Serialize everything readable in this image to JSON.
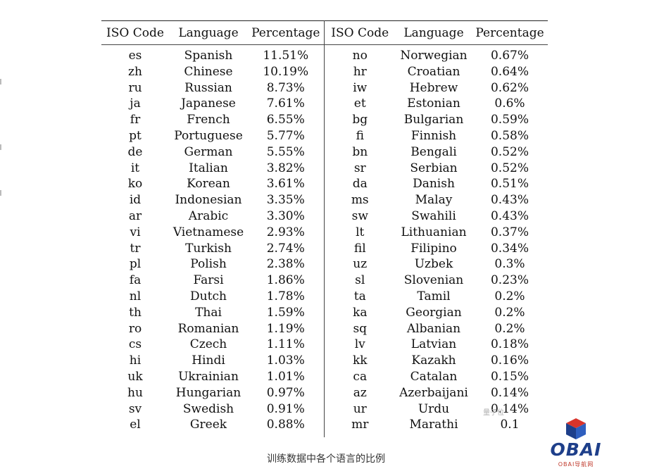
{
  "table": {
    "headers": [
      "ISO Code",
      "Language",
      "Percentage",
      "ISO Code",
      "Language",
      "Percentage"
    ],
    "rows": [
      [
        "es",
        "Spanish",
        "11.51%",
        "no",
        "Norwegian",
        "0.67%"
      ],
      [
        "zh",
        "Chinese",
        "10.19%",
        "hr",
        "Croatian",
        "0.64%"
      ],
      [
        "ru",
        "Russian",
        "8.73%",
        "iw",
        "Hebrew",
        "0.62%"
      ],
      [
        "ja",
        "Japanese",
        "7.61%",
        "et",
        "Estonian",
        "0.6%"
      ],
      [
        "fr",
        "French",
        "6.55%",
        "bg",
        "Bulgarian",
        "0.59%"
      ],
      [
        "pt",
        "Portuguese",
        "5.77%",
        "fi",
        "Finnish",
        "0.58%"
      ],
      [
        "de",
        "German",
        "5.55%",
        "bn",
        "Bengali",
        "0.52%"
      ],
      [
        "it",
        "Italian",
        "3.82%",
        "sr",
        "Serbian",
        "0.52%"
      ],
      [
        "ko",
        "Korean",
        "3.61%",
        "da",
        "Danish",
        "0.51%"
      ],
      [
        "id",
        "Indonesian",
        "3.35%",
        "ms",
        "Malay",
        "0.43%"
      ],
      [
        "ar",
        "Arabic",
        "3.30%",
        "sw",
        "Swahili",
        "0.43%"
      ],
      [
        "vi",
        "Vietnamese",
        "2.93%",
        "lt",
        "Lithuanian",
        "0.37%"
      ],
      [
        "tr",
        "Turkish",
        "2.74%",
        "fil",
        "Filipino",
        "0.34%"
      ],
      [
        "pl",
        "Polish",
        "2.38%",
        "uz",
        "Uzbek",
        "0.3%"
      ],
      [
        "fa",
        "Farsi",
        "1.86%",
        "sl",
        "Slovenian",
        "0.23%"
      ],
      [
        "nl",
        "Dutch",
        "1.78%",
        "ta",
        "Tamil",
        "0.2%"
      ],
      [
        "th",
        "Thai",
        "1.59%",
        "ka",
        "Georgian",
        "0.2%"
      ],
      [
        "ro",
        "Romanian",
        "1.19%",
        "sq",
        "Albanian",
        "0.2%"
      ],
      [
        "cs",
        "Czech",
        "1.11%",
        "lv",
        "Latvian",
        "0.18%"
      ],
      [
        "hi",
        "Hindi",
        "1.03%",
        "kk",
        "Kazakh",
        "0.16%"
      ],
      [
        "uk",
        "Ukrainian",
        "1.01%",
        "ca",
        "Catalan",
        "0.15%"
      ],
      [
        "hu",
        "Hungarian",
        "0.97%",
        "az",
        "Azerbaijani",
        "0.14%"
      ],
      [
        "sv",
        "Swedish",
        "0.91%",
        "ur",
        "Urdu",
        "0.14%"
      ],
      [
        "el",
        "Greek",
        "0.88%",
        "mr",
        "Marathi",
        "0.1"
      ]
    ]
  },
  "caption": "训练数据中各个语言的比例",
  "watermark": "量子位",
  "logo": {
    "word": "OBAI",
    "sub": "OBAI导航网",
    "colors": {
      "cube_top": "#d9342b",
      "cube_left": "#1e3f8a",
      "cube_right": "#2f5fbf",
      "word": "#1e3f8a",
      "sub": "#c0392b"
    }
  }
}
